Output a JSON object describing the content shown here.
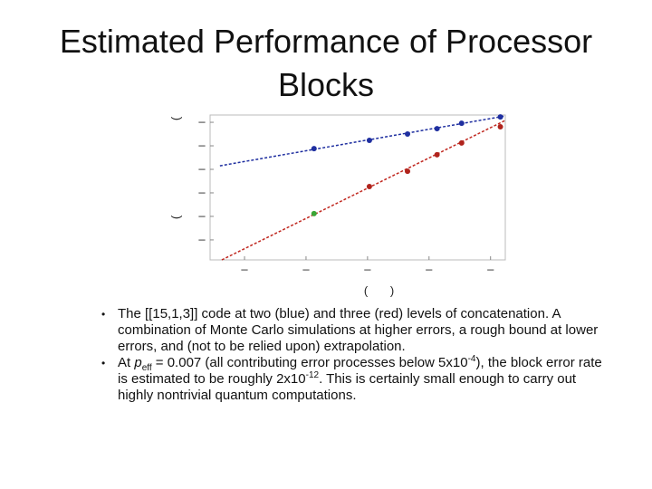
{
  "title": "Estimated Performance of Processor Blocks",
  "chart_data": {
    "type": "scatter",
    "xlim": [
      0.44,
      5.24
    ],
    "ylim": [
      0.15,
      6.31
    ],
    "xticks": [
      {
        "value": 1,
        "label": "–"
      },
      {
        "value": 2,
        "label": "–"
      },
      {
        "value": 3,
        "label": "–"
      },
      {
        "value": 4,
        "label": "–"
      },
      {
        "value": 5,
        "label": "–"
      }
    ],
    "yticks": [
      {
        "value": 1,
        "label": "–"
      },
      {
        "value": 2,
        "label": "–"
      },
      {
        "value": 3,
        "label": "–"
      },
      {
        "value": 4,
        "label": "–"
      },
      {
        "value": 5,
        "label": "–"
      },
      {
        "value": 6,
        "label": "–"
      }
    ],
    "x_label_parts": [
      "(",
      ")"
    ],
    "y_label_parts": [
      "(",
      "("
    ],
    "series": [
      {
        "color": "#1f2fa0",
        "style": "dashed",
        "x": [
          0.6,
          5.24
        ],
        "values": [
          4.15,
          6.27
        ]
      },
      {
        "color": "#c0271f",
        "style": "dashed",
        "x": [
          0.63,
          5.24
        ],
        "values": [
          0.15,
          6.08
        ]
      },
      {
        "color": "#1f2fa0",
        "style": "markers",
        "x": [
          2.13,
          3.03,
          3.65,
          4.13,
          4.53,
          5.16
        ],
        "values": [
          4.88,
          5.23,
          5.5,
          5.73,
          5.96,
          6.23
        ]
      },
      {
        "color": "#b0231c",
        "style": "markers",
        "x": [
          3.03,
          3.65,
          4.13,
          4.53,
          5.16
        ],
        "values": [
          3.27,
          3.92,
          4.62,
          5.12,
          5.81
        ]
      },
      {
        "color": "#3aa636",
        "style": "markers",
        "x": [
          2.13
        ],
        "values": [
          2.12
        ]
      }
    ]
  },
  "bullets": [
    [
      {
        "text": "The [[15,1,3]] code at two (blue) and three (red) levels of concatenation. A combination of Monte Carlo simulations at higher errors, a rough bound at lower errors, and (not to be relied upon) extrapolation.",
        "style": "normal"
      }
    ],
    [
      {
        "text": "At ",
        "style": "normal"
      },
      {
        "text": "p",
        "style": "italic"
      },
      {
        "text": "eff",
        "style": "sub"
      },
      {
        "text": " = 0.007 (all contributing error processes below 5x10",
        "style": "normal"
      },
      {
        "text": "-4",
        "style": "sup"
      },
      {
        "text": "), the block error rate is estimated to be roughly 2x10",
        "style": "normal"
      },
      {
        "text": "-12",
        "style": "sup"
      },
      {
        "text": ".  This is certainly small enough to carry out highly nontrivial quantum computations.",
        "style": "normal"
      }
    ]
  ]
}
